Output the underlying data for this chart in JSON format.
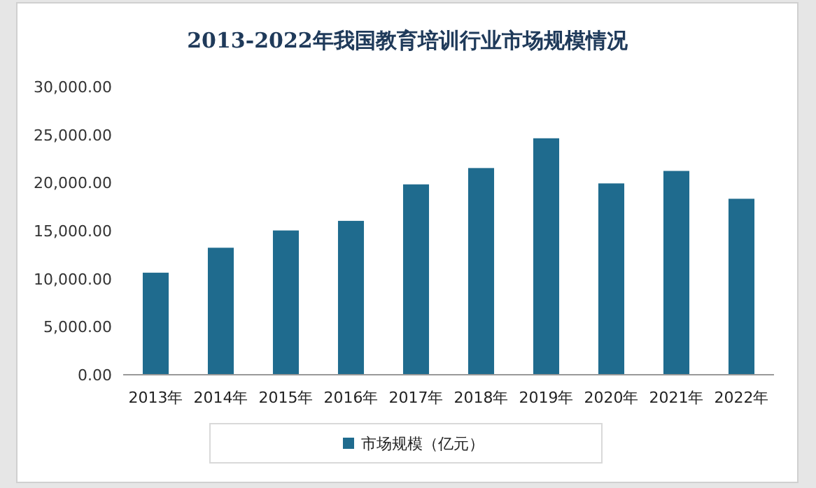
{
  "chart_data": {
    "type": "bar",
    "title": "2013-2022年我国教育培训行业市场规模情况",
    "categories": [
      "2013年",
      "2014年",
      "2015年",
      "2016年",
      "2017年",
      "2018年",
      "2019年",
      "2020年",
      "2021年",
      "2022年"
    ],
    "series": [
      {
        "name": "市场规模（亿元）",
        "color": "#1f6b8e",
        "values": [
          10700,
          13300,
          15100,
          16100,
          19900,
          21600,
          24700,
          20000,
          21300,
          18400
        ]
      }
    ],
    "ylim": [
      0,
      30000
    ],
    "yticks": [
      {
        "value": 0,
        "label": "0.00"
      },
      {
        "value": 5000,
        "label": "5,000.00"
      },
      {
        "value": 10000,
        "label": "10,000.00"
      },
      {
        "value": 15000,
        "label": "15,000.00"
      },
      {
        "value": 20000,
        "label": "20,000.00"
      },
      {
        "value": 25000,
        "label": "25,000.00"
      },
      {
        "value": 30000,
        "label": "30,000.00"
      }
    ],
    "grid": false,
    "legend": "bottom"
  }
}
